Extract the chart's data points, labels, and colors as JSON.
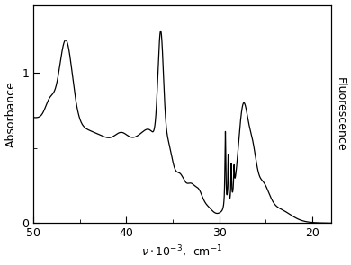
{
  "ylabel_left": "Absorbance",
  "ylabel_right": "Fluorescence",
  "xlim": [
    50,
    18
  ],
  "ylim": [
    0,
    1.45
  ],
  "yticks": [
    0,
    1
  ],
  "xticks": [
    50,
    40,
    30,
    20
  ],
  "background_color": "#ffffff",
  "line_color": "#000000"
}
